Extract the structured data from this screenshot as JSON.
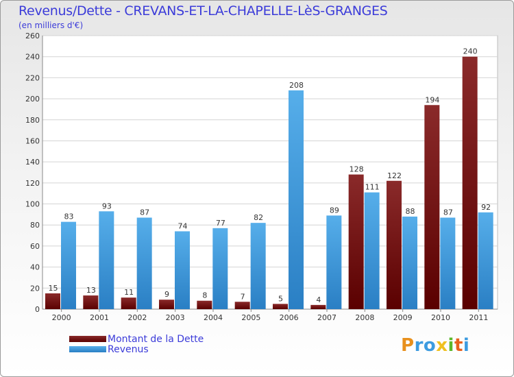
{
  "chart_data": {
    "type": "bar",
    "title": "Revenus/Dette - CREVANS-ET-LA-CHAPELLE-LèS-GRANGES",
    "subtitle": "(en milliers d'€)",
    "categories": [
      "2000",
      "2001",
      "2002",
      "2003",
      "2004",
      "2005",
      "2006",
      "2007",
      "2008",
      "2009",
      "2010",
      "2011"
    ],
    "series": [
      {
        "name": "Montant de la Dette",
        "values": [
          15,
          13,
          11,
          9,
          8,
          7,
          5,
          4,
          128,
          122,
          194,
          240
        ],
        "color": "#7a1010"
      },
      {
        "name": "Revenus",
        "values": [
          83,
          93,
          87,
          74,
          77,
          82,
          208,
          89,
          111,
          88,
          87,
          92
        ],
        "color": "#3c9be0"
      }
    ],
    "ylim": [
      0,
      260
    ],
    "yticks": [
      0,
      20,
      40,
      60,
      80,
      100,
      120,
      140,
      160,
      180,
      200,
      220,
      240,
      260
    ],
    "grid": true,
    "legend_position": "bottom-left"
  },
  "logo": {
    "letters": [
      "P",
      "r",
      "o",
      "x",
      "i",
      "t",
      "i"
    ],
    "colors": [
      "#e8901c",
      "#3c9be0",
      "#3c9be0",
      "#f0c020",
      "#5cb82a",
      "#e8601c",
      "#3c9be0"
    ]
  }
}
